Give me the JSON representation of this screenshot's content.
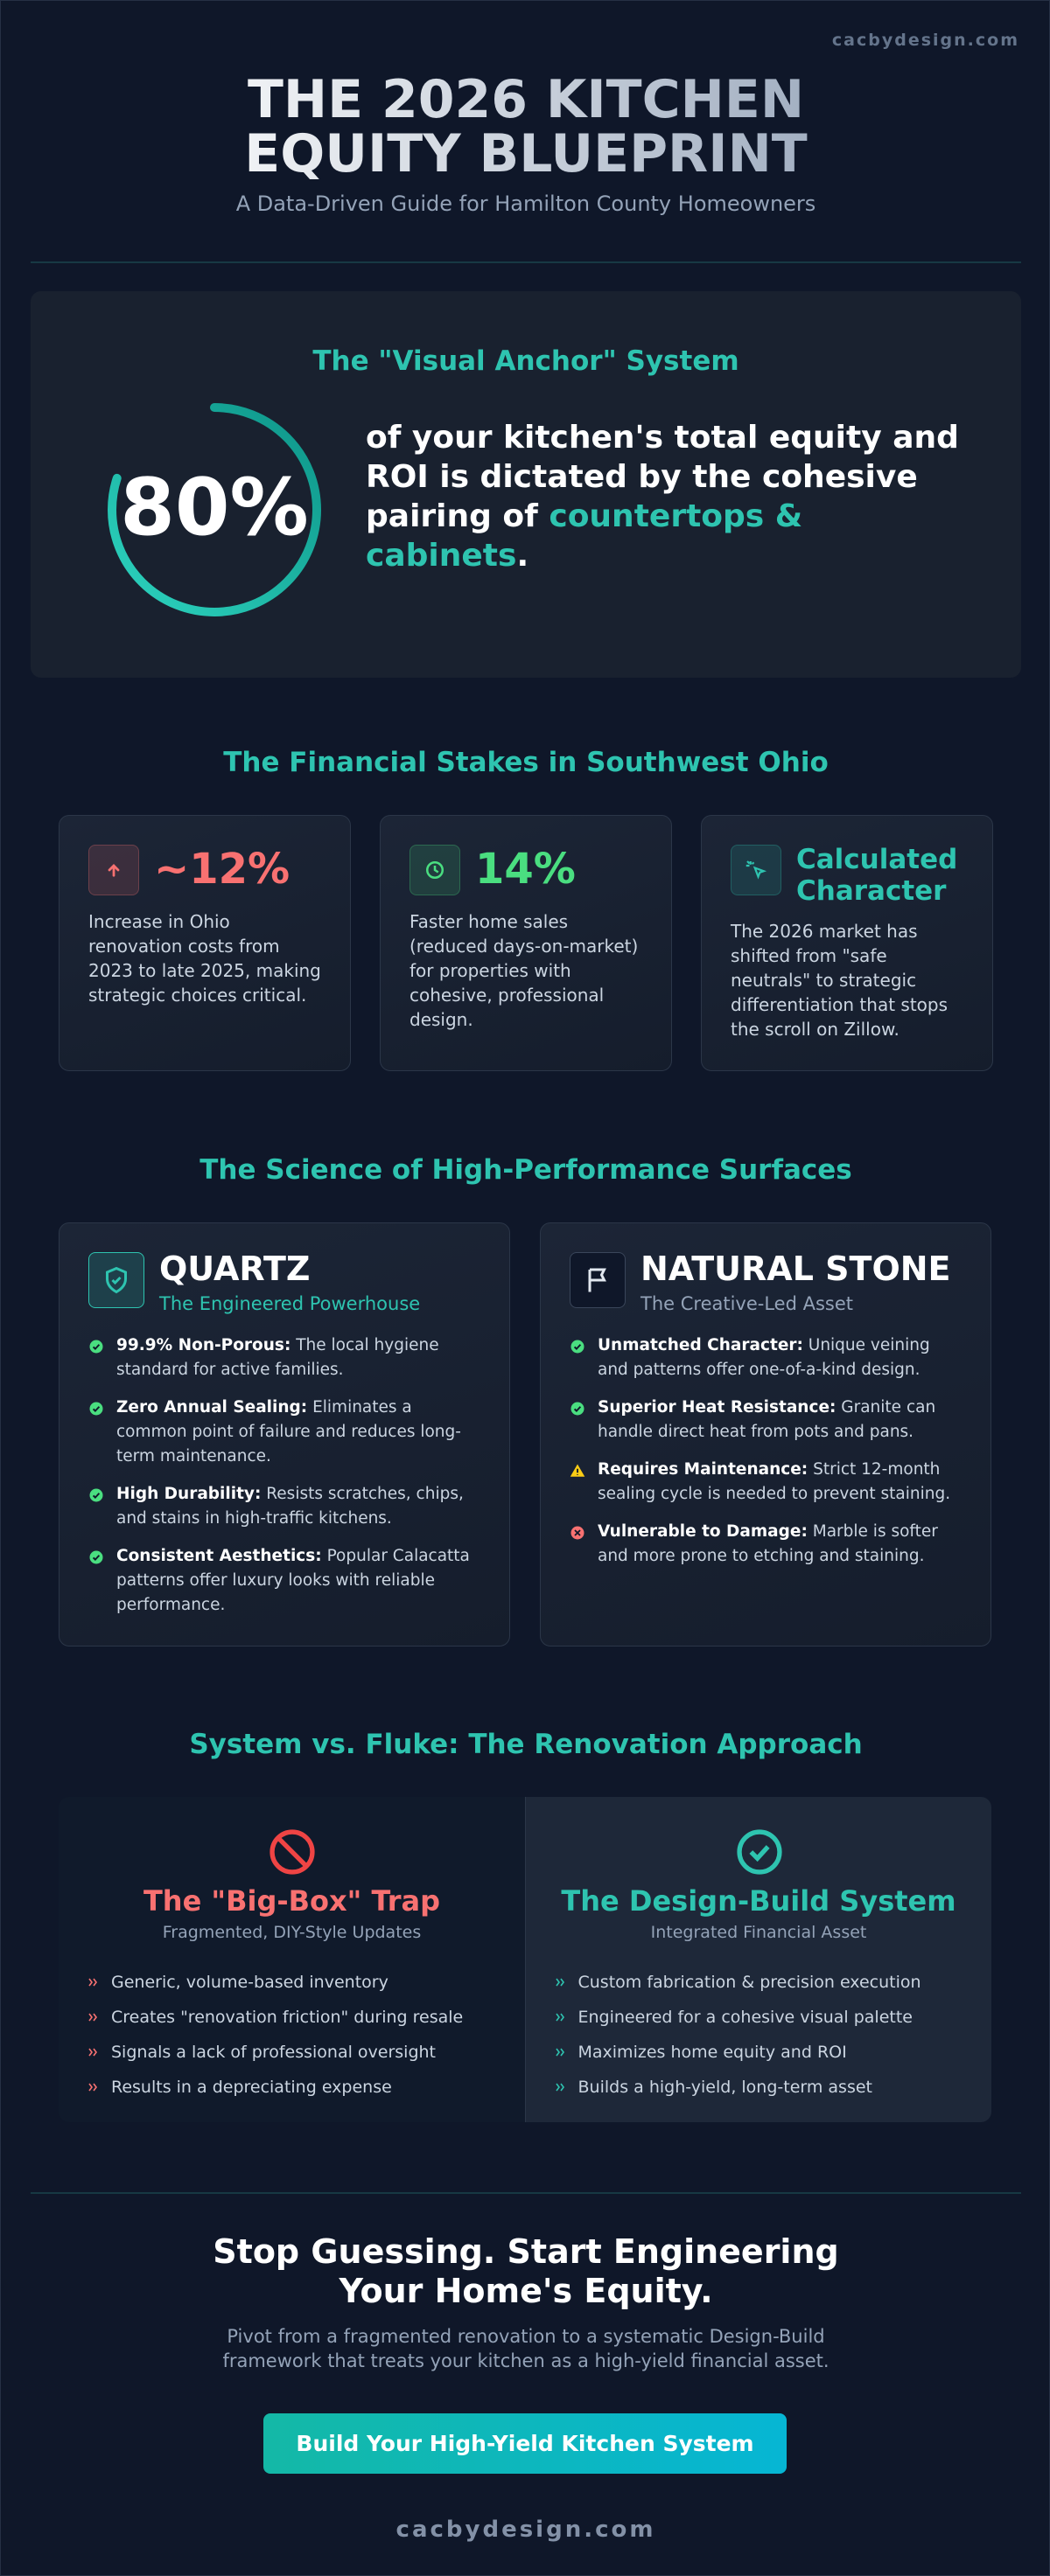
{
  "brand": "cacbydesign.com",
  "header": {
    "title": "THE 2026 KITCHEN EQUITY BLUEPRINT",
    "subtitle": "A Data-Driven Guide for Hamilton County Homeowners"
  },
  "anchor": {
    "heading": "The \"Visual Anchor\" System",
    "percent": 80,
    "percent_label": "80%",
    "text": "of your kitchen's total equity and ROI is dictated by the cohesive pairing of ",
    "highlight": "countertops & cabinets",
    "end": "."
  },
  "stakes": {
    "heading": "The Financial Stakes in Southwest Ohio",
    "cards": [
      {
        "stat": "~12%",
        "text": "Increase in Ohio renovation costs from 2023 to late 2025, making strategic choices critical."
      },
      {
        "stat": "14%",
        "text": "Faster home sales (reduced days-on-market) for properties with cohesive, professional design."
      },
      {
        "stat": "Calculated Character",
        "text": "The 2026 market has shifted from \"safe neutrals\" to strategic differentiation that stops the scroll on Zillow."
      }
    ]
  },
  "surfaces": {
    "heading": "The Science of High-Performance Surfaces",
    "cards": [
      {
        "title": "QUARTZ",
        "subtitle": "The Engineered Powerhouse",
        "items": [
          {
            "status": "check",
            "label": "99.9% Non-Porous:",
            "text": "The local hygiene standard for active families."
          },
          {
            "status": "check",
            "label": "Zero Annual Sealing:",
            "text": "Eliminates a common point of failure and reduces long-term maintenance."
          },
          {
            "status": "check",
            "label": "High Durability:",
            "text": "Resists scratches, chips, and stains in high-traffic kitchens."
          },
          {
            "status": "check",
            "label": "Consistent Aesthetics:",
            "text": "Popular Calacatta patterns offer luxury looks with reliable performance."
          }
        ]
      },
      {
        "title": "NATURAL STONE",
        "subtitle": "The Creative-Led Asset",
        "items": [
          {
            "status": "check",
            "label": "Unmatched Character:",
            "text": "Unique veining and patterns offer one-of-a-kind design."
          },
          {
            "status": "check",
            "label": "Superior Heat Resistance:",
            "text": "Granite can handle direct heat from pots and pans."
          },
          {
            "status": "warning",
            "label": "Requires Maintenance:",
            "text": "Strict 12-month sealing cycle is needed to prevent staining."
          },
          {
            "status": "error",
            "label": "Vulnerable to Damage:",
            "text": "Marble is softer and more prone to etching and staining."
          }
        ]
      }
    ]
  },
  "approach": {
    "heading": "System vs. Fluke: The Renovation Approach",
    "columns": [
      {
        "title": "The \"Big-Box\" Trap",
        "subtitle": "Fragmented, DIY-Style Updates",
        "items": [
          "Generic, volume-based inventory",
          "Creates \"renovation friction\" during resale",
          "Signals a lack of professional oversight",
          "Results in a depreciating expense"
        ]
      },
      {
        "title": "The Design-Build System",
        "subtitle": "Integrated Financial Asset",
        "items": [
          "Custom fabrication & precision execution",
          "Engineered for a cohesive visual palette",
          "Maximizes home equity and ROI",
          "Builds a high-yield, long-term asset"
        ]
      }
    ]
  },
  "cta": {
    "title": "Stop Guessing. Start Engineering Your Home's Equity.",
    "text": "Pivot from a fragmented renovation to a systematic Design-Build framework that treats your kitchen as a high-yield financial asset.",
    "button": "Build Your High-Yield Kitchen System"
  },
  "footer": "cacbydesign.com"
}
